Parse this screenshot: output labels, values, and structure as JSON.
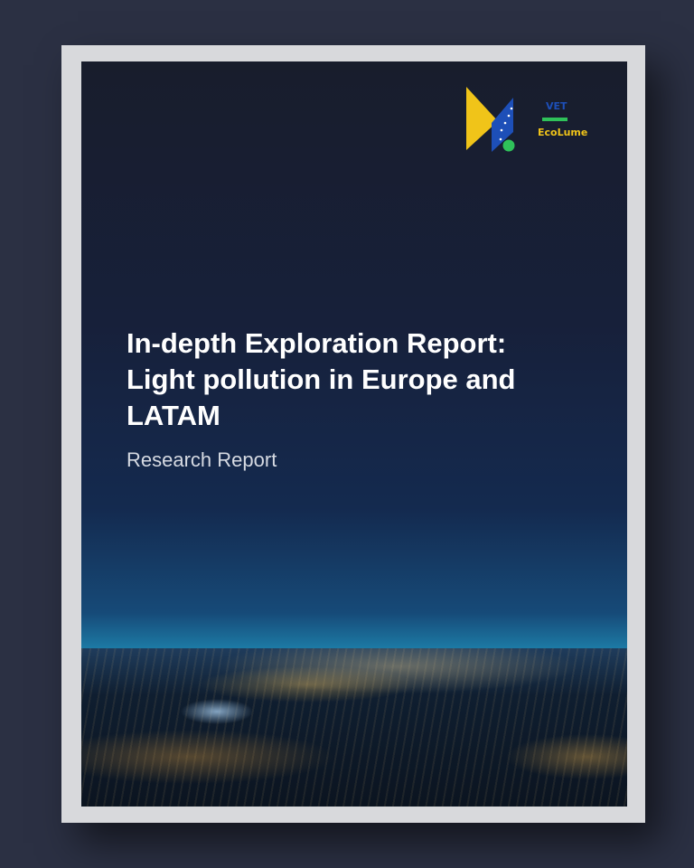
{
  "cover": {
    "title_lines": [
      "In-depth Exploration Report:",
      "Light pollution in Europe and",
      "LATAM"
    ],
    "subtitle": "Research Report"
  },
  "logo": {
    "vet": "VET",
    "eco": "EcoLume",
    "colors": {
      "yellow": "#f0c419",
      "blue": "#1d4fb8",
      "green": "#2fc25a"
    }
  }
}
